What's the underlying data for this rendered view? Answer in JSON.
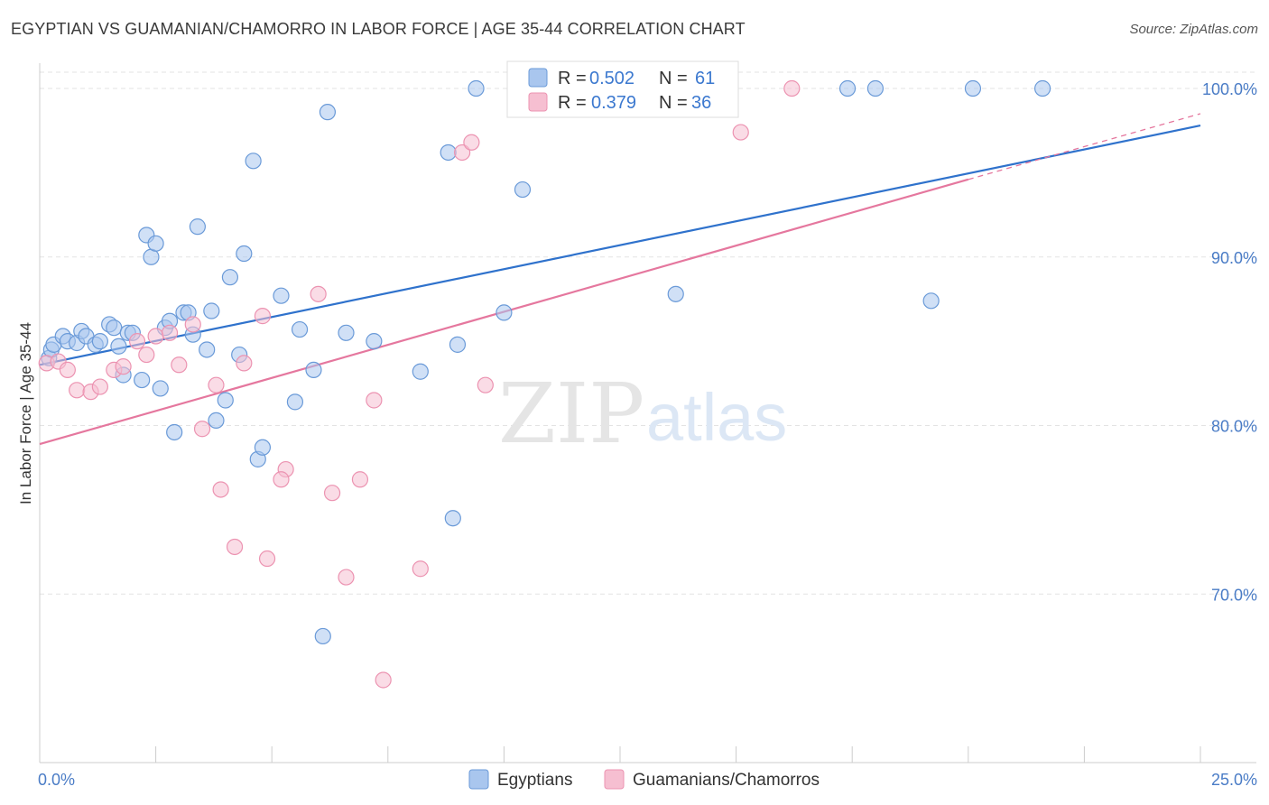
{
  "header": {
    "title": "EGYPTIAN VS GUAMANIAN/CHAMORRO IN LABOR FORCE | AGE 35-44 CORRELATION CHART",
    "source": "Source: ZipAtlas.com"
  },
  "watermark": {
    "zip": "ZIP",
    "atlas": "atlas"
  },
  "colors": {
    "blue_fill": "#a9c6ee",
    "blue_stroke": "#6a9ad8",
    "blue_line": "#2f72cc",
    "pink_fill": "#f6bfd1",
    "pink_stroke": "#ec93b1",
    "pink_line": "#e5779e",
    "axis_text": "#4a7cc6",
    "grid": "#e3e3e3"
  },
  "chart_data": {
    "type": "scatter",
    "title": "EGYPTIAN VS GUAMANIAN/CHAMORRO IN LABOR FORCE | AGE 35-44 CORRELATION CHART",
    "xlabel": "",
    "ylabel": "In Labor Force | Age 35-44",
    "xlim": [
      0,
      25
    ],
    "ylim": [
      60,
      101.5
    ],
    "x_tick_labels": [
      "0.0%",
      "25.0%"
    ],
    "y_ticks": [
      70,
      80,
      90,
      100
    ],
    "y_tick_labels": [
      "70.0%",
      "80.0%",
      "90.0%",
      "100.0%"
    ],
    "legend": {
      "r_label": "R =",
      "n_label": "N =",
      "entries": [
        {
          "series": "Egyptians",
          "r": "0.502",
          "n": "61"
        },
        {
          "series": "Guamanians/Chamorros",
          "r": "0.379",
          "n": "36"
        }
      ]
    },
    "series": [
      {
        "name": "Egyptians",
        "color": "#6a9ad8",
        "trend": {
          "x0": 0,
          "y0": 83.6,
          "x1": 25,
          "y1": 97.8,
          "dashed_to": null
        },
        "points": [
          [
            0.2,
            84.0
          ],
          [
            0.25,
            84.5
          ],
          [
            0.3,
            84.8
          ],
          [
            0.5,
            85.3
          ],
          [
            0.6,
            85.0
          ],
          [
            0.8,
            84.9
          ],
          [
            0.9,
            85.6
          ],
          [
            1.0,
            85.3
          ],
          [
            1.2,
            84.8
          ],
          [
            1.3,
            85.0
          ],
          [
            1.5,
            86.0
          ],
          [
            1.6,
            85.8
          ],
          [
            1.7,
            84.7
          ],
          [
            1.8,
            83.0
          ],
          [
            1.9,
            85.5
          ],
          [
            2.0,
            85.5
          ],
          [
            2.2,
            82.7
          ],
          [
            2.3,
            91.3
          ],
          [
            2.4,
            90.0
          ],
          [
            2.5,
            90.8
          ],
          [
            2.6,
            82.2
          ],
          [
            2.7,
            85.8
          ],
          [
            2.8,
            86.2
          ],
          [
            2.9,
            79.6
          ],
          [
            3.1,
            86.7
          ],
          [
            3.2,
            86.7
          ],
          [
            3.3,
            85.4
          ],
          [
            3.4,
            91.8
          ],
          [
            3.6,
            84.5
          ],
          [
            3.7,
            86.8
          ],
          [
            3.8,
            80.3
          ],
          [
            4.0,
            81.5
          ],
          [
            4.1,
            88.8
          ],
          [
            4.3,
            84.2
          ],
          [
            4.4,
            90.2
          ],
          [
            4.6,
            95.7
          ],
          [
            4.7,
            78.0
          ],
          [
            4.8,
            78.7
          ],
          [
            5.2,
            87.7
          ],
          [
            5.5,
            81.4
          ],
          [
            5.6,
            85.7
          ],
          [
            5.9,
            83.3
          ],
          [
            6.1,
            67.5
          ],
          [
            6.2,
            98.6
          ],
          [
            6.6,
            85.5
          ],
          [
            7.2,
            85.0
          ],
          [
            8.2,
            83.2
          ],
          [
            8.8,
            96.2
          ],
          [
            8.9,
            74.5
          ],
          [
            9.0,
            84.8
          ],
          [
            9.4,
            100.0
          ],
          [
            10.0,
            86.7
          ],
          [
            10.4,
            94.0
          ],
          [
            13.7,
            87.8
          ],
          [
            17.4,
            100.0
          ],
          [
            18.0,
            100.0
          ],
          [
            19.2,
            87.4
          ],
          [
            20.1,
            100.0
          ],
          [
            21.6,
            100.0
          ]
        ]
      },
      {
        "name": "Guamanians/Chamorros",
        "color": "#ec93b1",
        "trend": {
          "x0": 0,
          "y0": 78.9,
          "x1": 20.0,
          "y1": 94.6,
          "dashed_to": [
            25,
            98.5
          ]
        },
        "points": [
          [
            0.15,
            83.7
          ],
          [
            0.4,
            83.8
          ],
          [
            0.6,
            83.3
          ],
          [
            0.8,
            82.1
          ],
          [
            1.1,
            82.0
          ],
          [
            1.3,
            82.3
          ],
          [
            1.6,
            83.3
          ],
          [
            1.8,
            83.5
          ],
          [
            2.1,
            85.0
          ],
          [
            2.3,
            84.2
          ],
          [
            2.5,
            85.3
          ],
          [
            2.8,
            85.5
          ],
          [
            3.0,
            83.6
          ],
          [
            3.3,
            86.0
          ],
          [
            3.5,
            79.8
          ],
          [
            3.8,
            82.4
          ],
          [
            3.9,
            76.2
          ],
          [
            4.2,
            72.8
          ],
          [
            4.4,
            83.7
          ],
          [
            4.8,
            86.5
          ],
          [
            4.9,
            72.1
          ],
          [
            5.3,
            77.4
          ],
          [
            5.2,
            76.8
          ],
          [
            6.0,
            87.8
          ],
          [
            6.3,
            76.0
          ],
          [
            6.6,
            71.0
          ],
          [
            6.9,
            76.8
          ],
          [
            7.2,
            81.5
          ],
          [
            7.4,
            64.9
          ],
          [
            8.2,
            71.5
          ],
          [
            9.1,
            96.2
          ],
          [
            9.3,
            96.8
          ],
          [
            9.6,
            82.4
          ],
          [
            15.1,
            97.4
          ],
          [
            16.2,
            100.0
          ]
        ]
      }
    ]
  }
}
